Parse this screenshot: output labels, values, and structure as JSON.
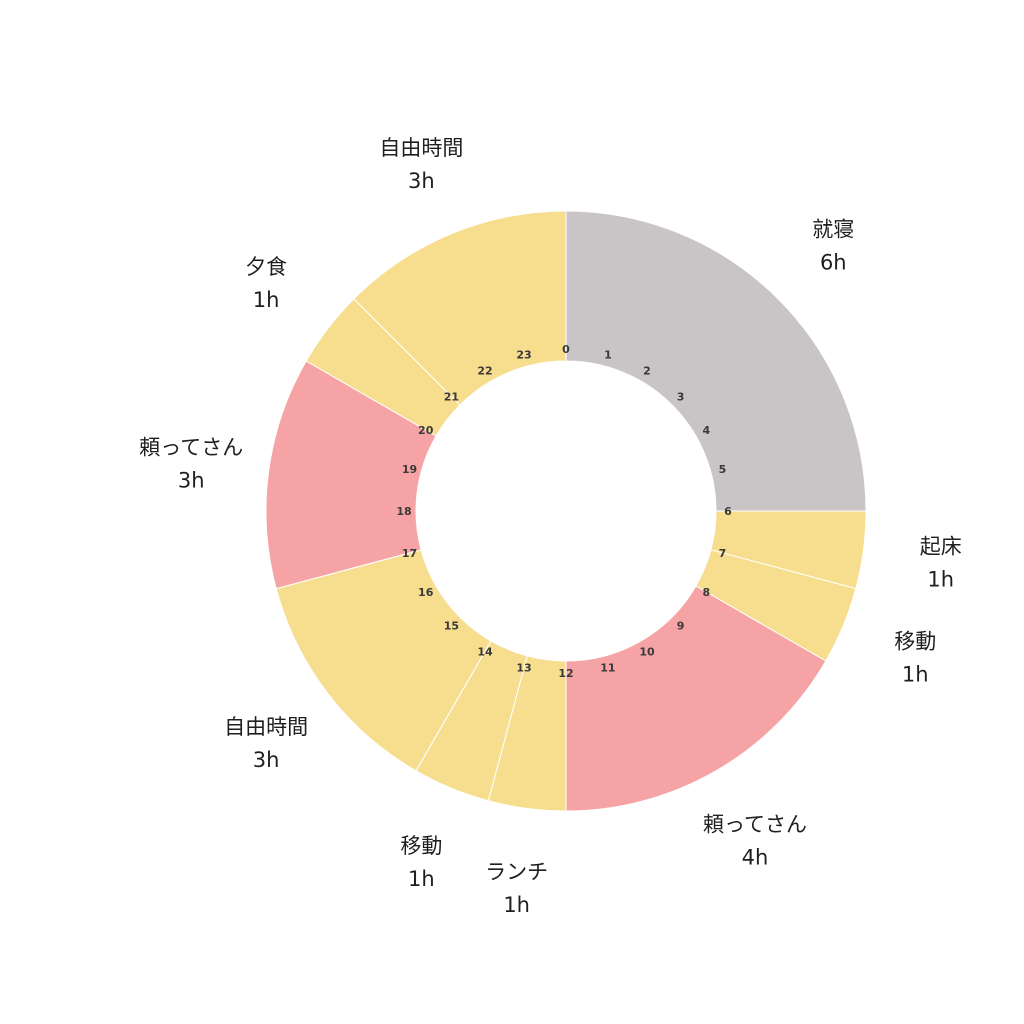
{
  "chart_data": {
    "type": "pie",
    "unit": "h",
    "hour_ticks": [
      "0",
      "1",
      "2",
      "3",
      "4",
      "5",
      "6",
      "7",
      "8",
      "9",
      "10",
      "11",
      "12",
      "13",
      "14",
      "15",
      "16",
      "17",
      "18",
      "19",
      "20",
      "21",
      "22",
      "23"
    ],
    "segments": [
      {
        "name": "就寝",
        "hours": 6,
        "duration_label": "6h",
        "color": "#c9c4c5"
      },
      {
        "name": "起床",
        "hours": 1,
        "duration_label": "1h",
        "color": "#f6de8e"
      },
      {
        "name": "移動",
        "hours": 1,
        "duration_label": "1h",
        "color": "#f6de8e"
      },
      {
        "name": "頼ってさん",
        "hours": 4,
        "duration_label": "4h",
        "color": "#f5a3a5"
      },
      {
        "name": "ランチ",
        "hours": 1,
        "duration_label": "1h",
        "color": "#f6de8e"
      },
      {
        "name": "移動",
        "hours": 1,
        "duration_label": "1h",
        "color": "#f6de8e"
      },
      {
        "name": "自由時間",
        "hours": 3,
        "duration_label": "3h",
        "color": "#f6de8e"
      },
      {
        "name": "頼ってさん",
        "hours": 3,
        "duration_label": "3h",
        "color": "#f5a3a5"
      },
      {
        "name": "夕食",
        "hours": 1,
        "duration_label": "1h",
        "color": "#f6de8e"
      },
      {
        "name": "自由時間",
        "hours": 3,
        "duration_label": "3h",
        "color": "#f6de8e"
      }
    ]
  }
}
